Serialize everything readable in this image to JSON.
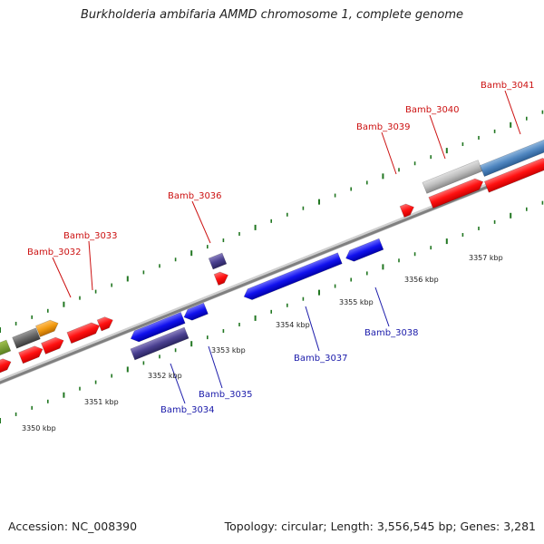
{
  "title": "Burkholderia ambifaria AMMD chromosome 1, complete genome",
  "footer": {
    "accession": "Accession: NC_008390",
    "info": "Topology: circular; Length: 3,556,545 bp; Genes: 3,281"
  },
  "scale_labels": [
    "3350 kbp",
    "3351 kbp",
    "3352 kbp",
    "3353 kbp",
    "3354 kbp",
    "3355 kbp",
    "3356 kbp",
    "3357 kbp"
  ],
  "gene_labels": {
    "top": [
      "Bamb_3032",
      "Bamb_3033",
      "Bamb_3036",
      "Bamb_3039",
      "Bamb_3040",
      "Bamb_3041"
    ],
    "bottom": [
      "Bamb_3034",
      "Bamb_3035",
      "Bamb_3037",
      "Bamb_3038"
    ]
  },
  "colors": {
    "forward_gene": "#ff1111",
    "reverse_gene": "#1111ee",
    "backbone": "#888888",
    "tick": "#227722",
    "top_label": "#cc1111",
    "bottom_label": "#1a1aaa"
  }
}
